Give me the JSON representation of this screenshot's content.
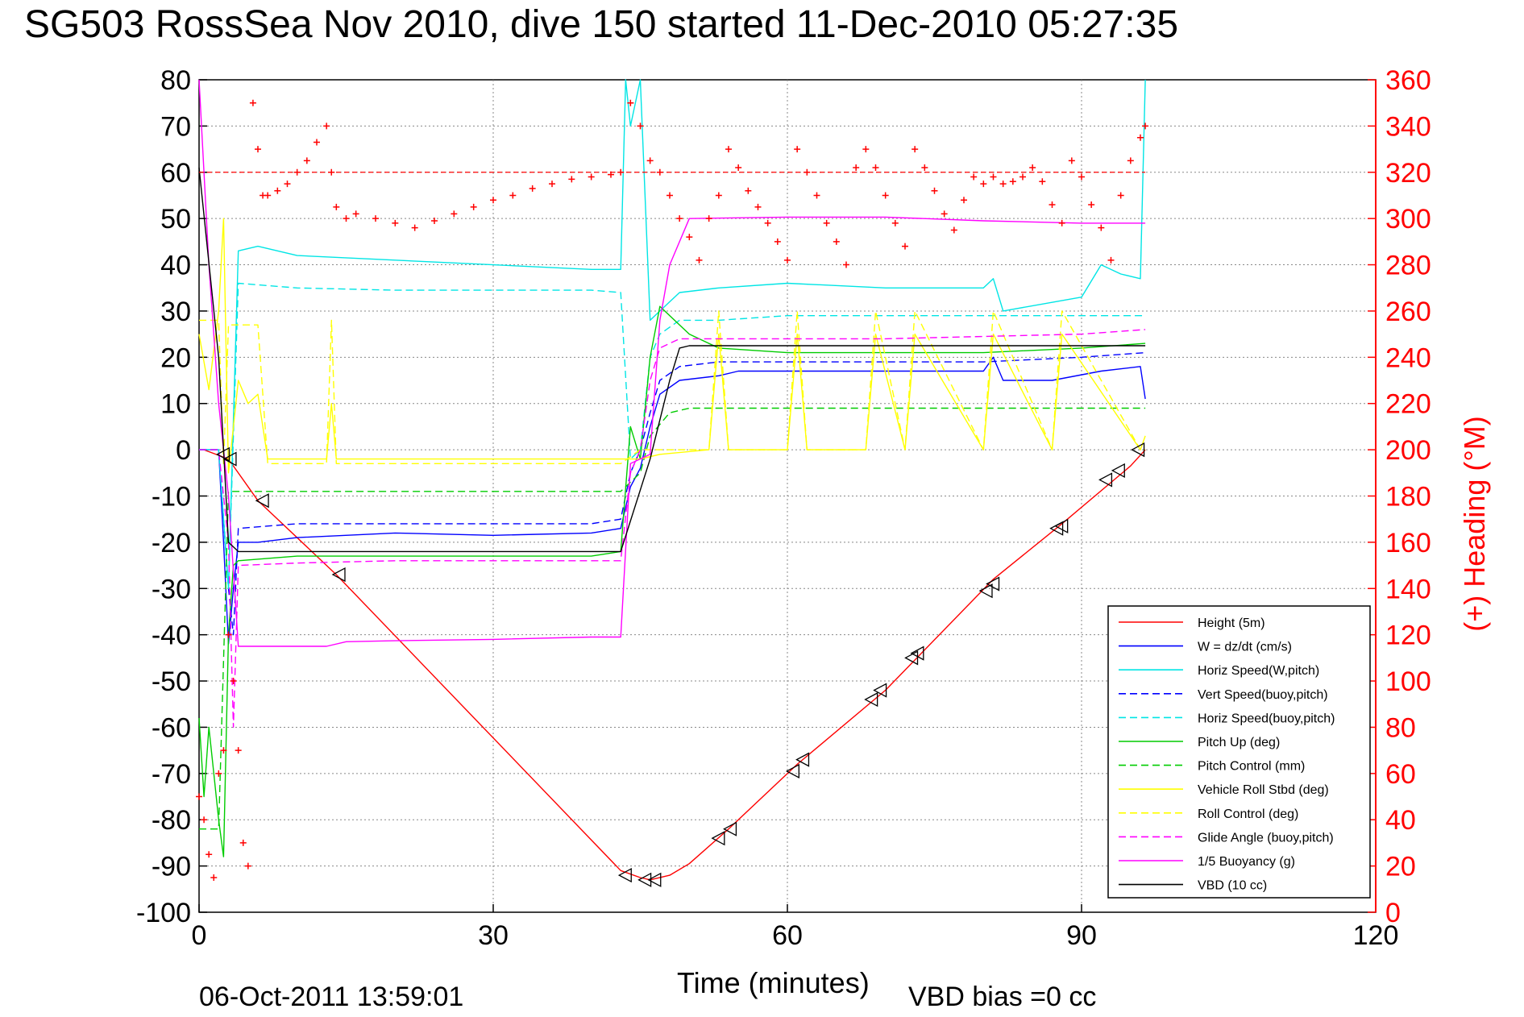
{
  "chart_data": {
    "type": "line",
    "title": "SG503 RossSea Nov 2010, dive 150 started 11-Dec-2010 05:27:35",
    "xlabel": "Time (minutes)",
    "ylabel_right": "(+) Heading (°M)",
    "footer_left": "06-Oct-2011 13:59:01",
    "footer_right": "VBD bias =0 cc",
    "xlim": [
      0,
      120
    ],
    "ylim": [
      -100,
      80
    ],
    "ylim_right": [
      0,
      360
    ],
    "xticks": [
      0,
      30,
      60,
      90,
      120
    ],
    "yticks": [
      -100,
      -90,
      -80,
      -70,
      -60,
      -50,
      -40,
      -30,
      -20,
      -10,
      0,
      10,
      20,
      30,
      40,
      50,
      60,
      70,
      80
    ],
    "yticks_right": [
      0,
      20,
      40,
      60,
      80,
      100,
      120,
      140,
      160,
      180,
      200,
      220,
      240,
      260,
      280,
      300,
      320,
      340,
      360
    ],
    "grid": true,
    "legend_position": "lower-right",
    "series": [
      {
        "name": "Height (5m)",
        "color": "#ff0000",
        "dash": "solid",
        "x": [
          0.5,
          3,
          6,
          14,
          43,
          45,
          46,
          48,
          50,
          54,
          61,
          70,
          81,
          88,
          95,
          96.5
        ],
        "y": [
          0,
          -2,
          -11,
          -27,
          -91,
          -92.5,
          -93,
          -92,
          -89.5,
          -82,
          -68,
          -52,
          -28,
          -16,
          -3.5,
          0
        ]
      },
      {
        "name": "W = dz/dt (cm/s)",
        "color": "#0000ff",
        "dash": "solid",
        "x": [
          0,
          2,
          2.5,
          3,
          3.5,
          4,
          6,
          10,
          20,
          30,
          40,
          43,
          44,
          45,
          46,
          47,
          49,
          53,
          55,
          60,
          70,
          80,
          81,
          82,
          87,
          92,
          96,
          96.5
        ],
        "y": [
          0,
          0,
          -20,
          -42,
          -30,
          -20,
          -20,
          -19,
          -18,
          -18.5,
          -18,
          -17,
          -8,
          -4,
          5,
          12,
          15,
          16,
          17,
          17,
          17,
          17,
          20,
          15,
          15,
          17,
          18,
          11
        ]
      },
      {
        "name": "Horiz Speed(W,pitch)",
        "color": "#00e5e5",
        "dash": "solid",
        "x": [
          0,
          2,
          3,
          4,
          6,
          10,
          20,
          30,
          40,
          43,
          43.5,
          44,
          45,
          46,
          47,
          49,
          53,
          60,
          70,
          80,
          81,
          82,
          90,
          92,
          94,
          96,
          96.5
        ],
        "y": [
          0,
          0,
          -30,
          43,
          44,
          42,
          41,
          40,
          39,
          39,
          80,
          70,
          80,
          28,
          30,
          34,
          35,
          36,
          35,
          35,
          37,
          30,
          33,
          40,
          38,
          37,
          80
        ]
      },
      {
        "name": "Vert Speed(buoy,pitch)",
        "color": "#0000ff",
        "dash": "dashed",
        "x": [
          0,
          2,
          3,
          3.5,
          4,
          10,
          20,
          30,
          40,
          43,
          44,
          45,
          46,
          47,
          49,
          53,
          60,
          70,
          80,
          90,
          96.5
        ],
        "y": [
          0,
          0,
          -30,
          -40,
          -17,
          -16,
          -16,
          -16,
          -16,
          -15,
          -5,
          0,
          8,
          15,
          18,
          19,
          19,
          19,
          19,
          20,
          21
        ]
      },
      {
        "name": "Horiz Speed(buoy,pitch)",
        "color": "#00e5e5",
        "dash": "dashed",
        "x": [
          0,
          2,
          3,
          4,
          10,
          20,
          30,
          40,
          43,
          44,
          45,
          46,
          47,
          49,
          53,
          60,
          70,
          80,
          90,
          96.5
        ],
        "y": [
          0,
          0,
          -30,
          36,
          35,
          34.5,
          34.5,
          34.5,
          34,
          -2,
          0,
          20,
          25,
          28,
          28,
          29,
          29,
          29,
          29,
          29
        ]
      },
      {
        "name": "Pitch Up (deg)",
        "color": "#00cc00",
        "dash": "solid",
        "x": [
          0,
          0.5,
          1,
          1.5,
          2,
          2.5,
          3,
          3.5,
          4,
          10,
          20,
          30,
          40,
          43,
          44,
          45,
          46,
          47,
          50,
          53,
          60,
          70,
          80,
          90,
          96.5
        ],
        "y": [
          -58,
          -75,
          -60,
          -70,
          -80,
          -88,
          -40,
          -25,
          -24,
          -23,
          -23,
          -23,
          -23,
          -22,
          5,
          -2,
          20,
          31,
          25,
          22,
          21,
          21,
          21,
          22,
          23
        ]
      },
      {
        "name": "Pitch Control (mm)",
        "color": "#00cc00",
        "dash": "dashed",
        "x": [
          0,
          2,
          3,
          10,
          20,
          30,
          40,
          43,
          45,
          46,
          48,
          50,
          60,
          70,
          80,
          90,
          96.5
        ],
        "y": [
          -82,
          -82,
          -9,
          -9,
          -9,
          -9,
          -9,
          -9,
          -5,
          3,
          8,
          9,
          9,
          9,
          9,
          9,
          9
        ]
      },
      {
        "name": "Vehicle Roll Stbd (deg)",
        "color": "#ffff00",
        "dash": "solid",
        "x": [
          0,
          1,
          2,
          2.5,
          3,
          4,
          5,
          6,
          7,
          10,
          13,
          13.5,
          14,
          20,
          30,
          40,
          43,
          45,
          47,
          52,
          53,
          54,
          60,
          61,
          62,
          68,
          69,
          72,
          73,
          80,
          81,
          87,
          88,
          96,
          96.5
        ],
        "y": [
          25,
          13,
          30,
          50,
          -5,
          15,
          10,
          12,
          -2,
          -2,
          -2,
          10,
          -2,
          -2,
          -2,
          -2,
          -2,
          -2,
          -1,
          0,
          25,
          0,
          0,
          25,
          0,
          0,
          25,
          0,
          25,
          0,
          25,
          0,
          25,
          0,
          3
        ]
      },
      {
        "name": "Roll Control (deg)",
        "color": "#ffff00",
        "dash": "dashed",
        "x": [
          0,
          2,
          2.5,
          3,
          4,
          5,
          6,
          7,
          13,
          13.5,
          14,
          20,
          30,
          40,
          43,
          45,
          47,
          52,
          53,
          54,
          60,
          61,
          62,
          68,
          69,
          72,
          73,
          80,
          81,
          87,
          88,
          96,
          96.5
        ],
        "y": [
          28,
          28,
          -3,
          27,
          27,
          27,
          27,
          -3,
          -3,
          28,
          -3,
          -3,
          -3,
          -3,
          -3,
          0,
          0,
          0,
          30,
          0,
          0,
          30,
          0,
          0,
          30,
          0,
          30,
          0,
          30,
          0,
          30,
          0,
          0
        ]
      },
      {
        "name": "Glide Angle (buoy,pitch)",
        "color": "#ff00ff",
        "dash": "dashed",
        "x": [
          0,
          2,
          3,
          3.5,
          4,
          10,
          20,
          30,
          40,
          43,
          44,
          45,
          46,
          47,
          49,
          53,
          60,
          70,
          80,
          90,
          96.5
        ],
        "y": [
          0,
          0,
          -20,
          -60,
          -25,
          -24.5,
          -24,
          -24,
          -24,
          -24,
          -5,
          0,
          15,
          22,
          24,
          24,
          24,
          24,
          24.5,
          25,
          26
        ]
      },
      {
        "name": "1/5 Buoyancy (g)",
        "color": "#ff00ff",
        "dash": "solid",
        "x": [
          0,
          1,
          2,
          3,
          4,
          10,
          13,
          15,
          20,
          30,
          40,
          43,
          44,
          46,
          47,
          48,
          50,
          60,
          70,
          80,
          90,
          96.5
        ],
        "y": [
          80,
          40,
          10,
          -10,
          -42.5,
          -42.5,
          -42.5,
          -41.5,
          -41.3,
          -41,
          -40.5,
          -40.5,
          -3,
          -1,
          28,
          40,
          50,
          50.3,
          50.3,
          49.5,
          49,
          49
        ]
      },
      {
        "name": "VBD (10 cc)",
        "color": "#000000",
        "dash": "solid",
        "x": [
          0,
          2,
          3,
          4,
          10,
          20,
          30,
          40,
          43,
          46,
          48,
          49,
          50,
          55,
          60,
          70,
          80,
          90,
          96.5
        ],
        "y": [
          61,
          20,
          -20,
          -22,
          -22,
          -22,
          -22,
          -22,
          -22,
          -2,
          15,
          22,
          22.5,
          22.5,
          22.5,
          22.5,
          22.5,
          22.5,
          22.5
        ]
      }
    ],
    "heading": {
      "name": "(+) Heading",
      "color": "#ff0000",
      "axis": "right",
      "reference_value": 320,
      "x": [
        0,
        0.5,
        1,
        1.5,
        2,
        2.5,
        3,
        3.5,
        4,
        4.5,
        5,
        5.5,
        6,
        6.5,
        7,
        8,
        9,
        10,
        11,
        12,
        13,
        13.5,
        14,
        15,
        16,
        18,
        20,
        22,
        24,
        26,
        28,
        30,
        32,
        34,
        36,
        38,
        40,
        42,
        43,
        44,
        45,
        46,
        47,
        48,
        49,
        50,
        51,
        52,
        53,
        54,
        55,
        56,
        57,
        58,
        59,
        60,
        61,
        62,
        63,
        64,
        65,
        66,
        67,
        68,
        69,
        70,
        71,
        72,
        73,
        74,
        75,
        76,
        77,
        78,
        79,
        80,
        81,
        82,
        83,
        84,
        85,
        86,
        87,
        88,
        89,
        90,
        91,
        92,
        93,
        94,
        95,
        96,
        96.5
      ],
      "y": [
        50,
        40,
        25,
        15,
        60,
        70,
        120,
        100,
        70,
        30,
        20,
        350,
        330,
        310,
        310,
        312,
        315,
        320,
        325,
        333,
        340,
        320,
        305,
        300,
        302,
        300,
        298,
        296,
        299,
        302,
        305,
        308,
        310,
        313,
        315,
        317,
        318,
        319,
        320,
        350,
        340,
        325,
        320,
        310,
        300,
        292,
        282,
        300,
        310,
        330,
        322,
        312,
        305,
        298,
        290,
        282,
        330,
        320,
        310,
        298,
        290,
        280,
        322,
        330,
        322,
        310,
        298,
        288,
        330,
        322,
        312,
        302,
        295,
        308,
        318,
        315,
        318,
        315,
        316,
        318,
        322,
        316,
        306,
        298,
        325,
        318,
        306,
        296,
        282,
        310,
        325,
        335,
        340
      ]
    },
    "markers": {
      "color": "#000000",
      "shape": "triangle",
      "x": [
        2.5,
        3.2,
        6.5,
        14.3,
        43.5,
        45.5,
        46.5,
        53,
        54.2,
        60.6,
        61.6,
        68.6,
        69.5,
        72.7,
        73.3,
        80.3,
        81,
        87.5,
        88,
        92.5,
        93.8,
        95.8
      ],
      "y": [
        -1,
        -2,
        -11,
        -27,
        -92,
        -93,
        -93,
        -84,
        -82,
        -69.5,
        -67,
        -54,
        -52,
        -45,
        -44,
        -30.5,
        -29,
        -17,
        -16.5,
        -6.5,
        -4.5,
        0
      ]
    }
  }
}
